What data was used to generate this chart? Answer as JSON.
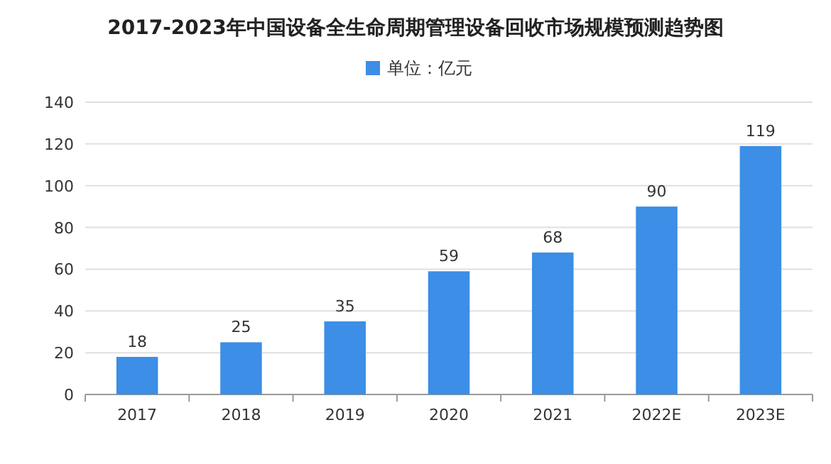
{
  "chart_data": {
    "type": "bar",
    "title": "2017-2023年中国设备全生命周期管理设备回收市场规模预测趋势图",
    "categories": [
      "2017",
      "2018",
      "2019",
      "2020",
      "2021",
      "2022E",
      "2023E"
    ],
    "series": [
      {
        "name": "单位：亿元",
        "color": "#3c8ee6",
        "values": [
          18,
          25,
          35,
          59,
          68,
          90,
          119
        ]
      }
    ],
    "ylim": [
      0,
      140
    ],
    "yticks": [
      0,
      20,
      40,
      60,
      80,
      100,
      120,
      140
    ],
    "grid": "y",
    "legend": "top",
    "data_labels": true
  }
}
